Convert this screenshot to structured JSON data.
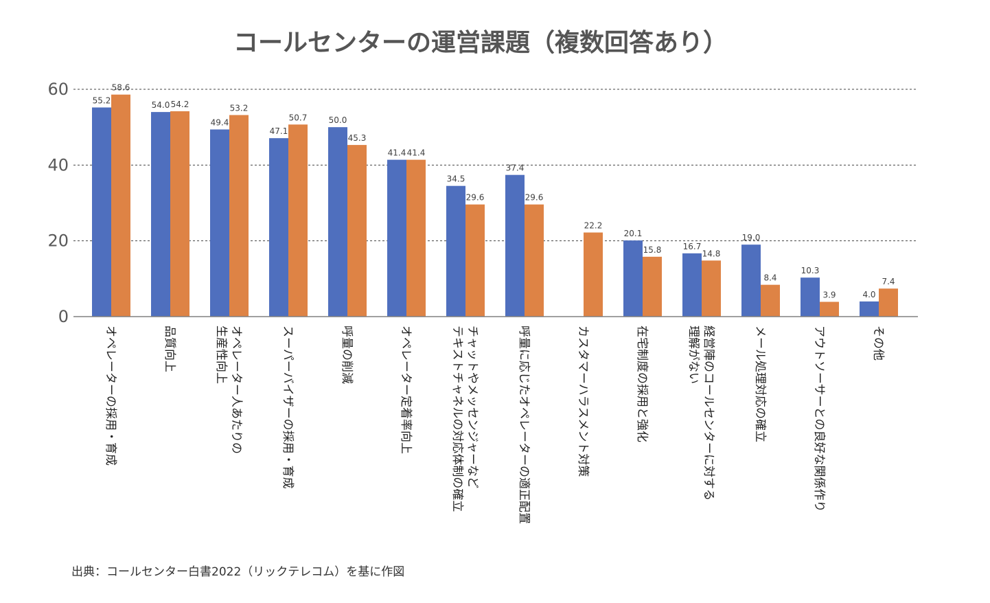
{
  "chart_data": {
    "type": "bar",
    "title": "コールセンターの運営課題（複数回答あり）",
    "ylim": [
      0,
      60
    ],
    "yticks": [
      0,
      20,
      40,
      60
    ],
    "grid": "dashed",
    "categories": [
      [
        "オペレーターの採用・育成"
      ],
      [
        "品質向上"
      ],
      [
        "オペレーター人あたりの",
        "生産性向上"
      ],
      [
        "スーパーバイザーの採用・育成"
      ],
      [
        "呼量の削減"
      ],
      [
        "オペレーター定着率向上"
      ],
      [
        "チャットやメッセンジャーなど",
        "テキストチャネルの対応体制の確立"
      ],
      [
        "呼量に応じたオペレーターの適正配置"
      ],
      [
        "カスタマーハラスメント対策"
      ],
      [
        "在宅制度の採用と強化"
      ],
      [
        "経営陣のコールセンターに対する",
        "理解がない"
      ],
      [
        "メール処理対応の確立"
      ],
      [
        "アウトソーサーとの良好な関係作り"
      ],
      [
        "その他"
      ]
    ],
    "series": [
      {
        "name": "series1",
        "color": "#4f6fbe",
        "values": [
          55.2,
          54.0,
          49.4,
          47.1,
          50.0,
          41.4,
          34.5,
          37.4,
          null,
          20.1,
          16.7,
          19.0,
          10.3,
          4.0
        ],
        "labels": [
          "55.2",
          "54.0",
          "49.4",
          "47.1",
          "50.0",
          "41.4",
          "34.5",
          "37.4",
          null,
          "20.1",
          "16.7",
          "19.0",
          "10.3",
          "4.0"
        ]
      },
      {
        "name": "series2",
        "color": "#de8345",
        "values": [
          58.6,
          54.2,
          53.2,
          50.7,
          45.3,
          41.4,
          29.6,
          29.6,
          22.2,
          15.8,
          14.8,
          8.4,
          3.9,
          7.4
        ],
        "labels": [
          "58.6",
          "54.2",
          "53.2",
          "50.7",
          "45.3",
          "41.4",
          "29.6",
          "29.6",
          "22.2",
          "15.8",
          "14.8",
          "8.4",
          "3.9",
          "7.4"
        ]
      }
    ],
    "source": "出典：コールセンター白書2022（リックテレコム）を基に作図"
  }
}
